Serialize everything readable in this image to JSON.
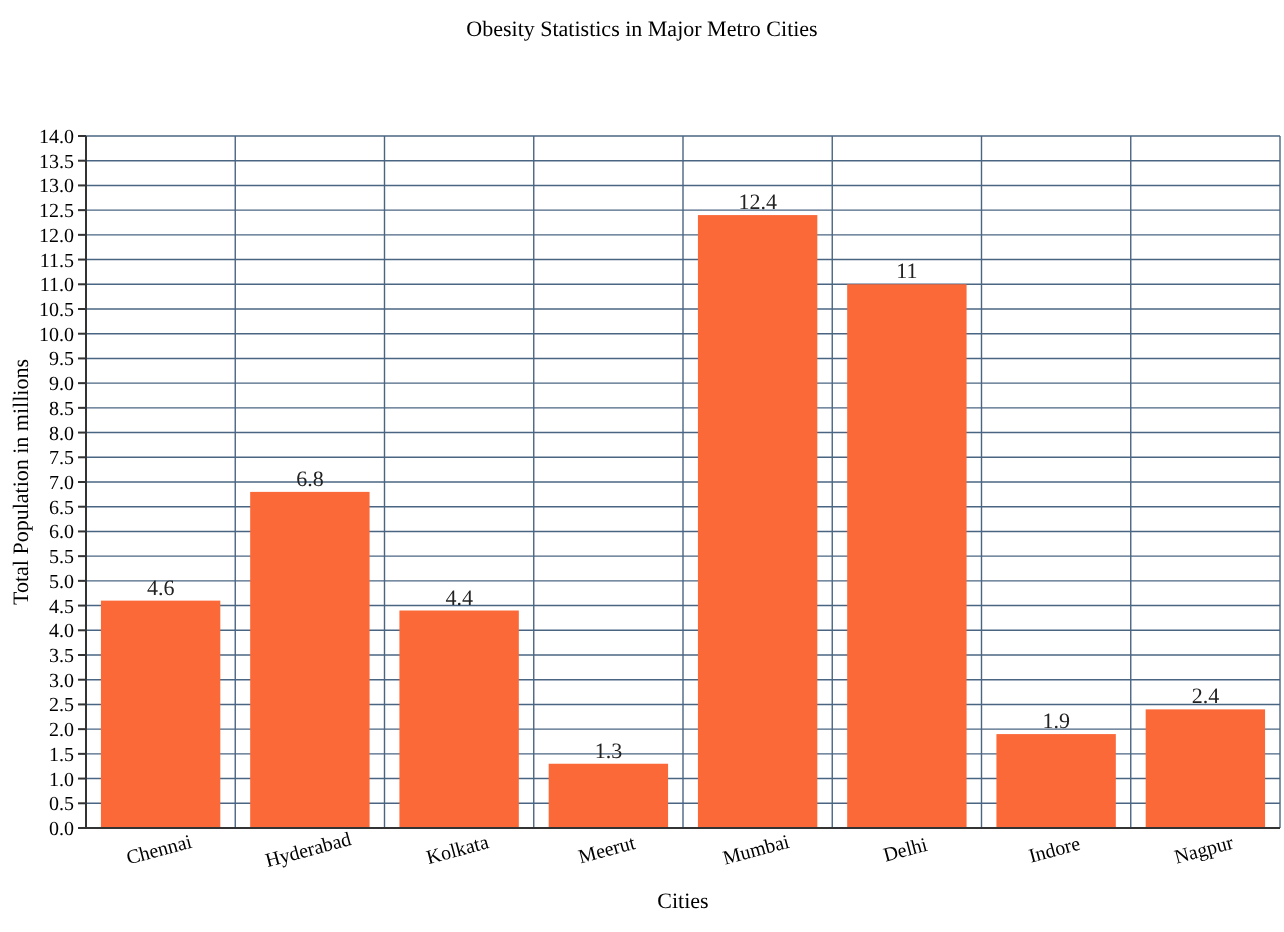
{
  "chart_data": {
    "type": "bar",
    "title": "Obesity Statistics in Major Metro Cities",
    "xlabel": "Cities",
    "ylabel": "Total Population in millions",
    "categories": [
      "Chennai",
      "Hyderabad",
      "Kolkata",
      "Meerut",
      "Mumbai",
      "Delhi",
      "Indore",
      "Nagpur"
    ],
    "values": [
      4.6,
      6.8,
      4.4,
      1.3,
      12.4,
      11,
      1.9,
      2.4
    ],
    "color": "#fb6938",
    "data_labels": true,
    "grid": true,
    "ylim": [
      0,
      14
    ],
    "yticks": [
      {
        "value": 0,
        "label": "0.0"
      },
      {
        "value": 0.5,
        "label": "0.5"
      },
      {
        "value": 1,
        "label": "1.0"
      },
      {
        "value": 1.5,
        "label": "1.5"
      },
      {
        "value": 2,
        "label": "2.0"
      },
      {
        "value": 2.5,
        "label": "2.5"
      },
      {
        "value": 3,
        "label": "3.0"
      },
      {
        "value": 3.5,
        "label": "3.5"
      },
      {
        "value": 4,
        "label": "4.0"
      },
      {
        "value": 4.5,
        "label": "4.5"
      },
      {
        "value": 5,
        "label": "5.0"
      },
      {
        "value": 5.5,
        "label": "5.5"
      },
      {
        "value": 6,
        "label": "6.0"
      },
      {
        "value": 6.5,
        "label": "6.5"
      },
      {
        "value": 7,
        "label": "7.0"
      },
      {
        "value": 7.5,
        "label": "7.5"
      },
      {
        "value": 8,
        "label": "8.0"
      },
      {
        "value": 8.5,
        "label": "8.5"
      },
      {
        "value": 9,
        "label": "9.0"
      },
      {
        "value": 9.5,
        "label": "9.5"
      },
      {
        "value": 10,
        "label": "10.0"
      },
      {
        "value": 10.5,
        "label": "10.5"
      },
      {
        "value": 11,
        "label": "11.0"
      },
      {
        "value": 11.5,
        "label": "11.5"
      },
      {
        "value": 12,
        "label": "12.0"
      },
      {
        "value": 12.5,
        "label": "12.5"
      },
      {
        "value": 13,
        "label": "13.0"
      },
      {
        "value": 13.5,
        "label": "13.5"
      },
      {
        "value": 14,
        "label": "14.0"
      }
    ]
  }
}
